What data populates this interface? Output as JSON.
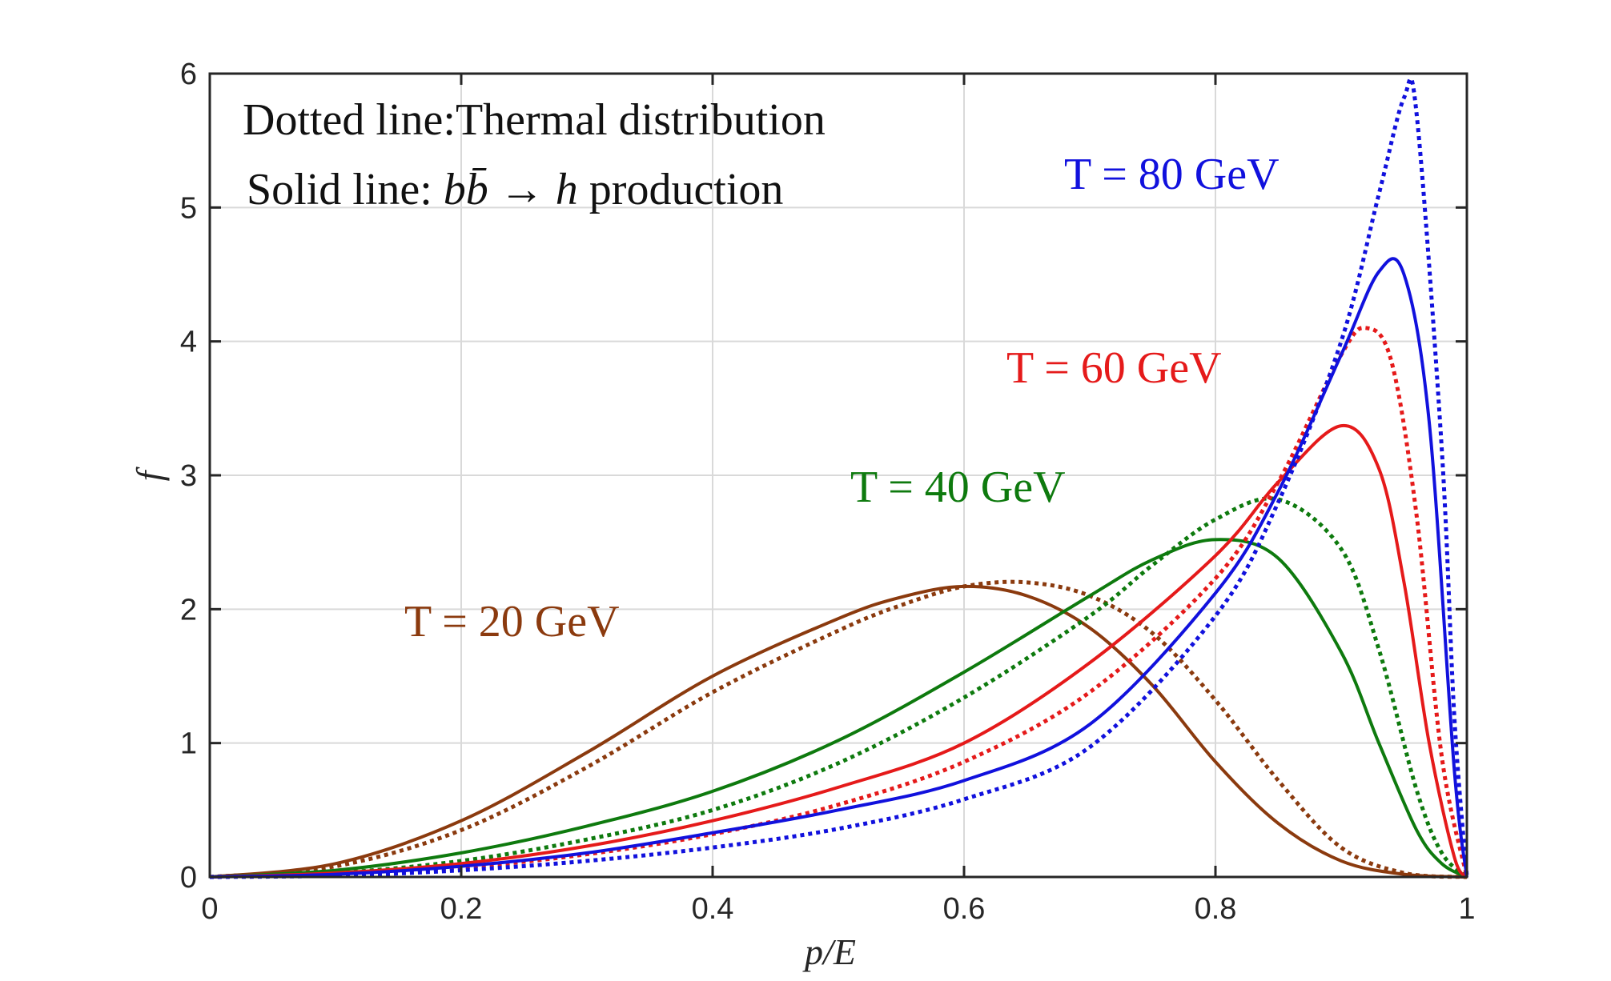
{
  "chart_data": {
    "type": "line",
    "xlabel": "p/E",
    "ylabel": "f",
    "xlim": [
      0,
      1
    ],
    "ylim": [
      0,
      6
    ],
    "xticks": [
      0,
      0.2,
      0.4,
      0.6,
      0.8,
      1
    ],
    "xtick_labels": [
      "0",
      "0.2",
      "0.4",
      "0.6",
      "0.8",
      "1"
    ],
    "yticks": [
      0,
      1,
      2,
      3,
      4,
      5,
      6
    ],
    "ytick_labels": [
      "0",
      "1",
      "2",
      "3",
      "4",
      "5",
      "6"
    ],
    "grid": true,
    "annotations": {
      "dotted_line_note": "Dotted line:Thermal distribution",
      "solid_line_prefix": "Solid line: ",
      "solid_line_formula": "bb̄ → h",
      "solid_line_suffix": " production"
    },
    "series": [
      {
        "name": "T = 20 GeV",
        "label_text": "T = 20 GeV",
        "color": "#8B3A0E",
        "solid": {
          "x": [
            0,
            0.1,
            0.2,
            0.3,
            0.4,
            0.5,
            0.55,
            0.6,
            0.65,
            0.7,
            0.75,
            0.8,
            0.85,
            0.9,
            0.95,
            1.0
          ],
          "y": [
            0,
            0.1,
            0.42,
            0.93,
            1.5,
            1.93,
            2.09,
            2.17,
            2.1,
            1.86,
            1.43,
            0.86,
            0.4,
            0.12,
            0.02,
            0
          ]
        },
        "dotted": {
          "x": [
            0,
            0.1,
            0.2,
            0.3,
            0.4,
            0.5,
            0.55,
            0.6,
            0.65,
            0.7,
            0.75,
            0.8,
            0.85,
            0.9,
            0.95,
            1.0
          ],
          "y": [
            0,
            0.08,
            0.35,
            0.82,
            1.38,
            1.84,
            2.03,
            2.17,
            2.2,
            2.1,
            1.82,
            1.32,
            0.72,
            0.22,
            0.03,
            0
          ]
        }
      },
      {
        "name": "T = 40 GeV",
        "label_text": "T = 40 GeV",
        "color": "#0E7A0E",
        "solid": {
          "x": [
            0,
            0.1,
            0.2,
            0.3,
            0.4,
            0.5,
            0.6,
            0.7,
            0.75,
            0.8,
            0.85,
            0.9,
            0.93,
            0.96,
            0.98,
            1.0
          ],
          "y": [
            0,
            0.05,
            0.18,
            0.38,
            0.64,
            1.02,
            1.53,
            2.1,
            2.37,
            2.52,
            2.38,
            1.68,
            1.0,
            0.35,
            0.1,
            0
          ]
        },
        "dotted": {
          "x": [
            0,
            0.1,
            0.2,
            0.3,
            0.4,
            0.5,
            0.6,
            0.7,
            0.75,
            0.8,
            0.85,
            0.9,
            0.93,
            0.96,
            0.98,
            1.0
          ],
          "y": [
            0,
            0.03,
            0.12,
            0.28,
            0.5,
            0.85,
            1.34,
            1.95,
            2.33,
            2.67,
            2.82,
            2.45,
            1.7,
            0.65,
            0.18,
            0
          ]
        }
      },
      {
        "name": "T = 60 GeV",
        "label_text": "T = 60 GeV",
        "color": "#E51A1A",
        "solid": {
          "x": [
            0,
            0.1,
            0.2,
            0.3,
            0.4,
            0.5,
            0.6,
            0.7,
            0.8,
            0.85,
            0.9,
            0.93,
            0.95,
            0.97,
            0.99,
            1.0
          ],
          "y": [
            0,
            0.03,
            0.1,
            0.23,
            0.42,
            0.67,
            1.0,
            1.6,
            2.4,
            2.95,
            3.37,
            3.05,
            2.2,
            1.0,
            0.15,
            0
          ]
        },
        "dotted": {
          "x": [
            0,
            0.1,
            0.2,
            0.3,
            0.4,
            0.5,
            0.6,
            0.7,
            0.8,
            0.85,
            0.9,
            0.92,
            0.94,
            0.96,
            0.98,
            1.0
          ],
          "y": [
            0,
            0.02,
            0.07,
            0.17,
            0.32,
            0.54,
            0.86,
            1.38,
            2.23,
            2.95,
            3.9,
            4.1,
            3.85,
            2.7,
            0.9,
            0
          ]
        }
      },
      {
        "name": "T = 80 GeV",
        "label_text": "T = 80 GeV",
        "color": "#1111DD",
        "solid": {
          "x": [
            0,
            0.1,
            0.2,
            0.3,
            0.4,
            0.5,
            0.6,
            0.7,
            0.8,
            0.85,
            0.9,
            0.93,
            0.95,
            0.97,
            0.99,
            1.0
          ],
          "y": [
            0,
            0.02,
            0.08,
            0.18,
            0.33,
            0.5,
            0.72,
            1.14,
            2.12,
            2.88,
            3.9,
            4.52,
            4.5,
            3.4,
            0.8,
            0
          ]
        },
        "dotted": {
          "x": [
            0,
            0.1,
            0.2,
            0.3,
            0.4,
            0.5,
            0.6,
            0.7,
            0.8,
            0.85,
            0.9,
            0.93,
            0.95,
            0.96,
            0.98,
            0.99,
            1.0
          ],
          "y": [
            0,
            0.01,
            0.05,
            0.12,
            0.22,
            0.36,
            0.58,
            0.97,
            1.95,
            2.8,
            4.0,
            5.1,
            5.82,
            5.7,
            3.2,
            1.2,
            0
          ]
        }
      }
    ]
  }
}
